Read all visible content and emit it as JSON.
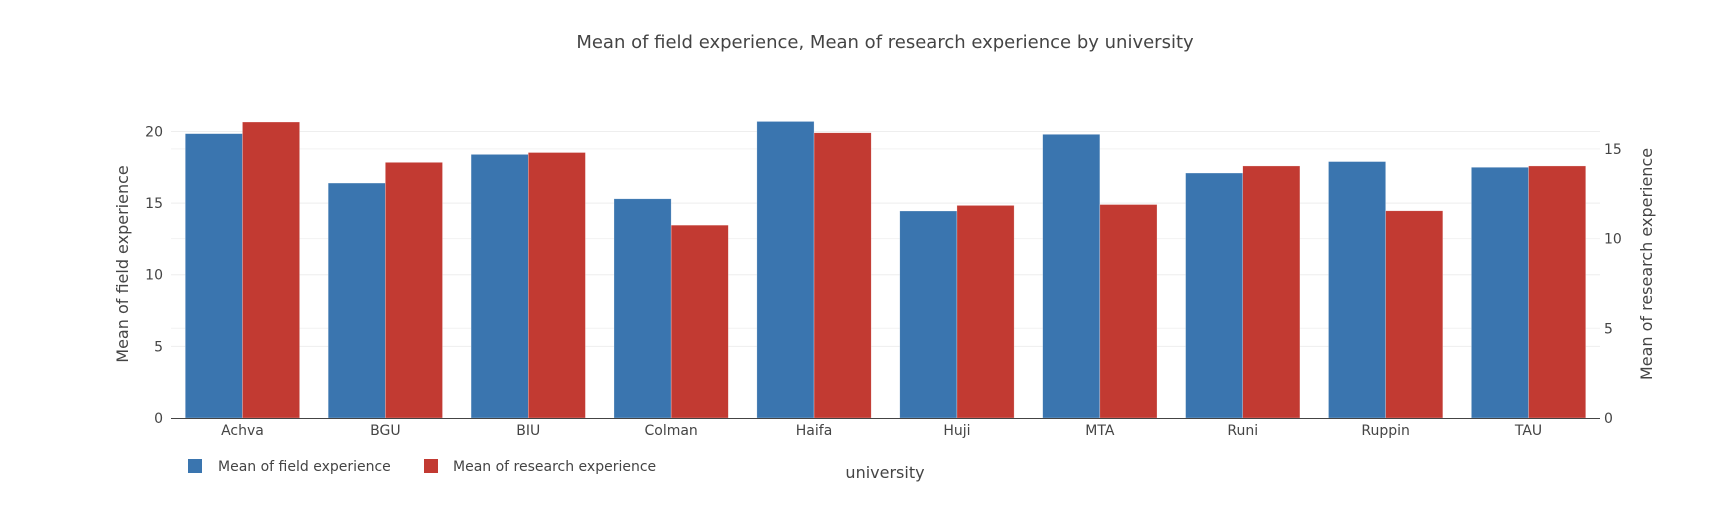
{
  "chart_data": {
    "type": "bar",
    "title": "Mean of field experience, Mean of research experience by university",
    "xlabel": "university",
    "ylabel": "Mean of field experience",
    "y2label": "Mean of research experience",
    "categories": [
      "Achva",
      "BGU",
      "BIU",
      "Colman",
      "Haifa",
      "Huji",
      "MTA",
      "Runi",
      "Ruppin",
      "TAU"
    ],
    "series": [
      {
        "name": "Mean of field experience",
        "axis": "left",
        "color": "#3a75af",
        "values": [
          19.85,
          16.4,
          18.4,
          15.3,
          20.7,
          14.45,
          19.8,
          17.1,
          17.9,
          17.5
        ]
      },
      {
        "name": "Mean of research experience",
        "axis": "right",
        "color": "#c23a32",
        "values": [
          16.5,
          14.25,
          14.8,
          10.75,
          15.9,
          11.85,
          11.9,
          14.05,
          11.55,
          14.05
        ]
      }
    ],
    "ylim": [
      0,
      21.5
    ],
    "y2lim": [
      0,
      17.17
    ],
    "yticks": [
      "0",
      "5",
      "10",
      "15",
      "20"
    ],
    "y2ticks": [
      "0",
      "5",
      "10",
      "15"
    ],
    "grid": true,
    "legend_placement": "bottom-left"
  }
}
